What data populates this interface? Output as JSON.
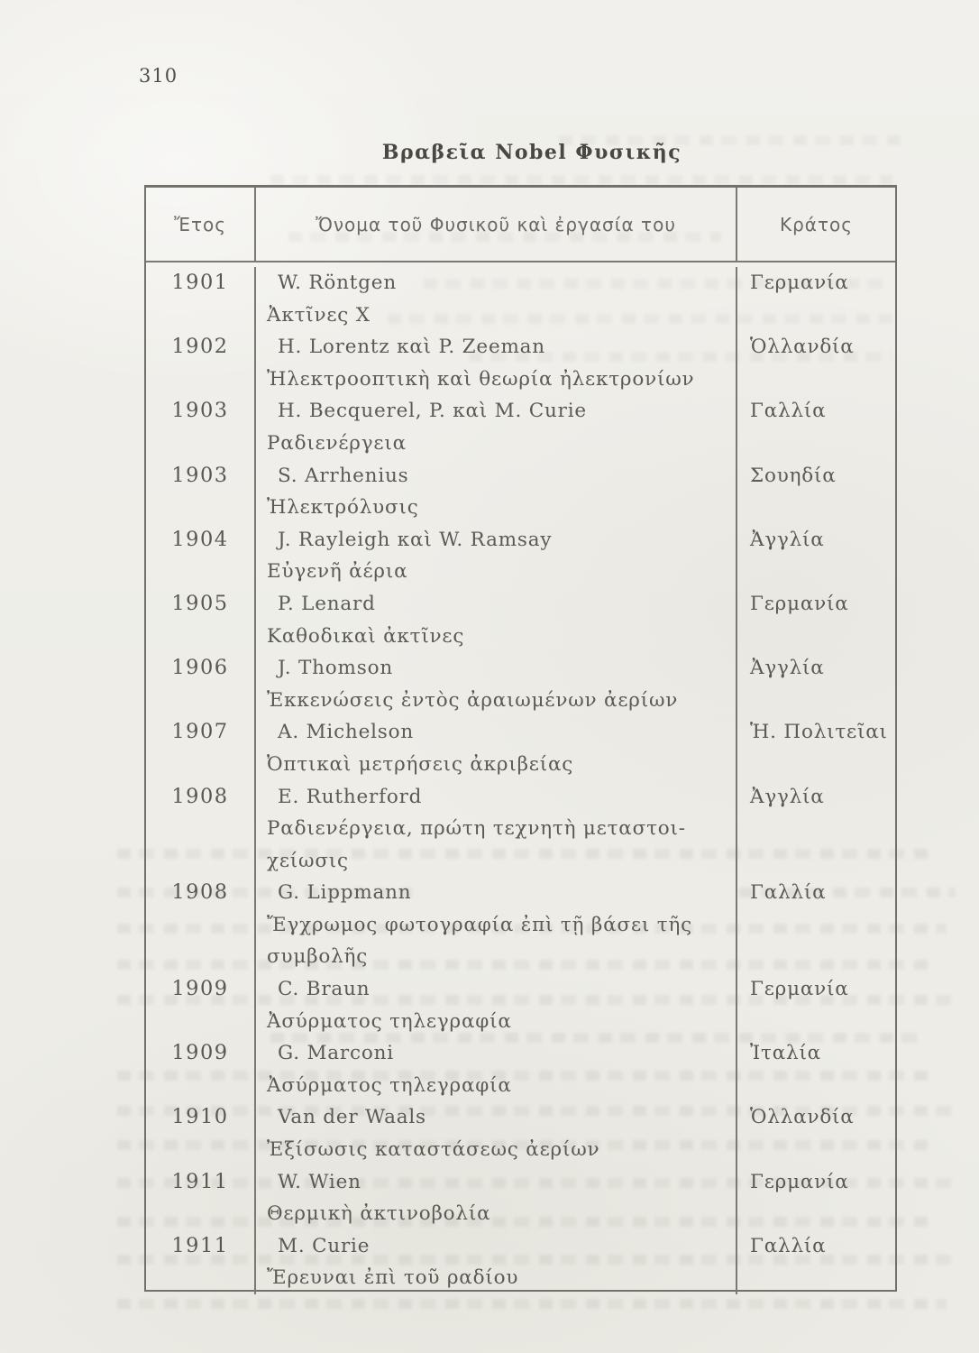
{
  "page": {
    "number": "310"
  },
  "title": "Βραβεῖα Nobel Φυσικῆς",
  "table": {
    "headers": [
      "Ἔτος",
      "Ὄνομα τοῦ Φυσικοῦ καὶ ἐργασία του",
      "Κράτος"
    ],
    "rows": [
      {
        "year": "1901",
        "name": "W. Röntgen",
        "work": [
          "Ἀκτῖνες Χ"
        ],
        "country": "Γερμανία"
      },
      {
        "year": "1902",
        "name": "H. Lorentz καὶ P. Zeeman",
        "work": [
          "Ἠλεκτροοπτικὴ καὶ θεωρία ἠλεκτρονίων"
        ],
        "country": "Ὁλλανδία"
      },
      {
        "year": "1903",
        "name": "H. Becquerel, P. καὶ M. Curie",
        "work": [
          "Ραδιενέργεια"
        ],
        "country": "Γαλλία"
      },
      {
        "year": "1903",
        "name": "S. Arrhenius",
        "work": [
          "Ἠλεκτρόλυσις"
        ],
        "country": "Σουηδία"
      },
      {
        "year": "1904",
        "name": "J. Rayleigh καὶ W. Ramsay",
        "work": [
          "Εὐγενῆ ἀέρια"
        ],
        "country": "Ἀγγλία"
      },
      {
        "year": "1905",
        "name": "P. Lenard",
        "work": [
          "Καθοδικαὶ ἀκτῖνες"
        ],
        "country": "Γερμανία"
      },
      {
        "year": "1906",
        "name": "J. Thomson",
        "work": [
          "Ἐκκενώσεις ἐντὸς ἀραιωμένων ἀερίων"
        ],
        "country": "Ἀγγλία"
      },
      {
        "year": "1907",
        "name": "A. Michelson",
        "work": [
          "Ὀπτικαὶ μετρήσεις ἀκριβείας"
        ],
        "country": "Ἡ. Πολιτεῖαι"
      },
      {
        "year": "1908",
        "name": "E. Rutherford",
        "work": [
          "Ραδιενέργεια, πρώτη τεχνητὴ μεταστοι-",
          "χείωσις"
        ],
        "country": "Ἀγγλία"
      },
      {
        "year": "1908",
        "name": "G. Lippmann",
        "work": [
          "Ἔγχρωμος φωτογραφία ἐπὶ τῇ βάσει τῆς",
          "συμβολῆς"
        ],
        "country": "Γαλλία"
      },
      {
        "year": "1909",
        "name": "C. Braun",
        "work": [
          "Ἀσύρματος τηλεγραφία"
        ],
        "country": "Γερμανία"
      },
      {
        "year": "1909",
        "name": "G. Marconi",
        "work": [
          "Ἀσύρματος τηλεγραφία"
        ],
        "country": "Ἰταλία"
      },
      {
        "year": "1910",
        "name": "Van der Waals",
        "work": [
          "Ἐξίσωσις καταστάσεως ἀερίων"
        ],
        "country": "Ὁλλανδία"
      },
      {
        "year": "1911",
        "name": "W. Wien",
        "work": [
          "Θερμικὴ ἀκτινοβολία"
        ],
        "country": "Γερμανία"
      },
      {
        "year": "1911",
        "name": "M. Curie",
        "work": [
          "Ἔρευναι ἐπὶ τοῦ ραδίου"
        ],
        "country": "Γαλλία"
      }
    ]
  },
  "colors": {
    "paper": "#efeee9",
    "ink": "#55534e",
    "border": "#73716a"
  }
}
